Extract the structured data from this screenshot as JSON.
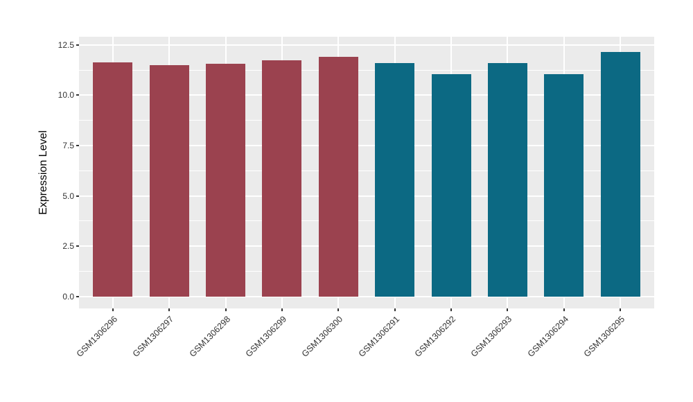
{
  "chart_data": {
    "type": "bar",
    "title": "",
    "ylabel": "Expression Level",
    "xlabel": "",
    "categories": [
      "GSM1306296",
      "GSM1306297",
      "GSM1306298",
      "GSM1306299",
      "GSM1306300",
      "GSM1306291",
      "GSM1306292",
      "GSM1306293",
      "GSM1306294",
      "GSM1306295"
    ],
    "values": [
      11.65,
      11.5,
      11.55,
      11.75,
      11.9,
      11.6,
      11.05,
      11.6,
      11.05,
      12.15
    ],
    "bar_groups": [
      0,
      0,
      0,
      0,
      0,
      1,
      1,
      1,
      1,
      1
    ],
    "group_colors": [
      "#9B424F",
      "#0C6983"
    ],
    "ytick_values": [
      0,
      2.5,
      5,
      7.5,
      10,
      12.5
    ],
    "ytick_labels": [
      "0.0",
      "2.5",
      "5.0",
      "7.5",
      "10.0",
      "12.5"
    ],
    "ytick_minor_values": [
      1.25,
      3.75,
      6.25,
      8.75,
      11.25
    ],
    "ylim": [
      -0.59,
      12.91
    ],
    "bar_width_ratio": 0.7,
    "grid": "horizontal major+minor, vertical major at category centers",
    "legend": "none",
    "panel_bg": "#EBEBEB",
    "grid_color": "#FFFFFF",
    "axis_text_color": "#333333",
    "x_label_rotation_deg": -45
  }
}
